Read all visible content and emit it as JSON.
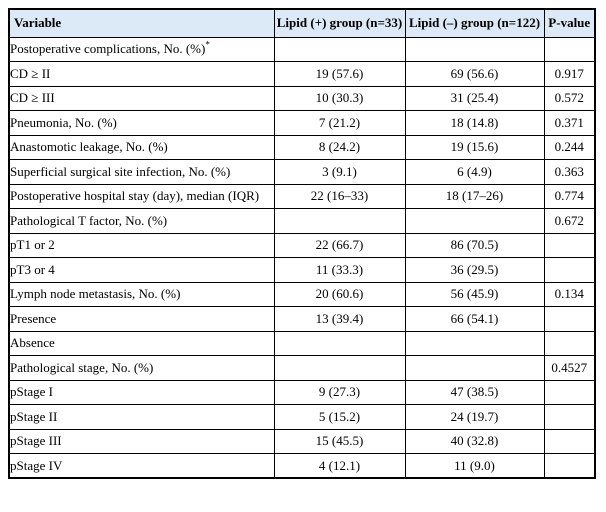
{
  "colors": {
    "header_background": "#dce9f6",
    "border": "#000000",
    "text": "#000000",
    "page_background": "#ffffff"
  },
  "table": {
    "columns": [
      "Variable",
      "Lipid (+) group (n=33)",
      "Lipid (–) group (n=122)",
      "P-value"
    ],
    "rows": [
      {
        "variable": "Postoperative complications, No. (%)",
        "superscript": "*",
        "lipid_pos": "",
        "lipid_neg": "",
        "p_value": ""
      },
      {
        "variable": "CD ≥ II",
        "superscript": "",
        "lipid_pos": "19 (57.6)",
        "lipid_neg": "69 (56.6)",
        "p_value": "0.917"
      },
      {
        "variable": "CD ≥ III",
        "superscript": "",
        "lipid_pos": "10 (30.3)",
        "lipid_neg": "31 (25.4)",
        "p_value": "0.572"
      },
      {
        "variable": "Pneumonia, No. (%)",
        "superscript": "",
        "lipid_pos": "7 (21.2)",
        "lipid_neg": "18 (14.8)",
        "p_value": "0.371"
      },
      {
        "variable": "Anastomotic leakage, No. (%)",
        "superscript": "",
        "lipid_pos": "8 (24.2)",
        "lipid_neg": "19 (15.6)",
        "p_value": "0.244"
      },
      {
        "variable": "Superficial surgical site infection, No. (%)",
        "superscript": "",
        "lipid_pos": "3 (9.1)",
        "lipid_neg": "6 (4.9)",
        "p_value": "0.363"
      },
      {
        "variable": "Postoperative hospital stay (day), median (IQR)",
        "superscript": "",
        "lipid_pos": "22 (16–33)",
        "lipid_neg": "18 (17–26)",
        "p_value": "0.774"
      },
      {
        "variable": "Pathological T factor, No. (%)",
        "superscript": "",
        "lipid_pos": "",
        "lipid_neg": "",
        "p_value": "0.672"
      },
      {
        "variable": "pT1 or 2",
        "superscript": "",
        "lipid_pos": "22 (66.7)",
        "lipid_neg": "86 (70.5)",
        "p_value": ""
      },
      {
        "variable": "pT3 or 4",
        "superscript": "",
        "lipid_pos": "11 (33.3)",
        "lipid_neg": "36 (29.5)",
        "p_value": ""
      },
      {
        "variable": "Lymph node metastasis, No. (%)",
        "superscript": "",
        "lipid_pos": "20 (60.6)",
        "lipid_neg": "56 (45.9)",
        "p_value": "0.134"
      },
      {
        "variable": "Presence",
        "superscript": "",
        "lipid_pos": "13 (39.4)",
        "lipid_neg": "66 (54.1)",
        "p_value": ""
      },
      {
        "variable": "Absence",
        "superscript": "",
        "lipid_pos": "",
        "lipid_neg": "",
        "p_value": ""
      },
      {
        "variable": "Pathological stage, No. (%)",
        "superscript": "",
        "lipid_pos": "",
        "lipid_neg": "",
        "p_value": "0.4527"
      },
      {
        "variable": "pStage I",
        "superscript": "",
        "lipid_pos": "9 (27.3)",
        "lipid_neg": "47 (38.5)",
        "p_value": ""
      },
      {
        "variable": "pStage II",
        "superscript": "",
        "lipid_pos": "5 (15.2)",
        "lipid_neg": "24 (19.7)",
        "p_value": ""
      },
      {
        "variable": "pStage III",
        "superscript": "",
        "lipid_pos": "15 (45.5)",
        "lipid_neg": "40 (32.8)",
        "p_value": ""
      },
      {
        "variable": "pStage IV",
        "superscript": "",
        "lipid_pos": "4 (12.1)",
        "lipid_neg": "11 (9.0)",
        "p_value": ""
      }
    ]
  }
}
